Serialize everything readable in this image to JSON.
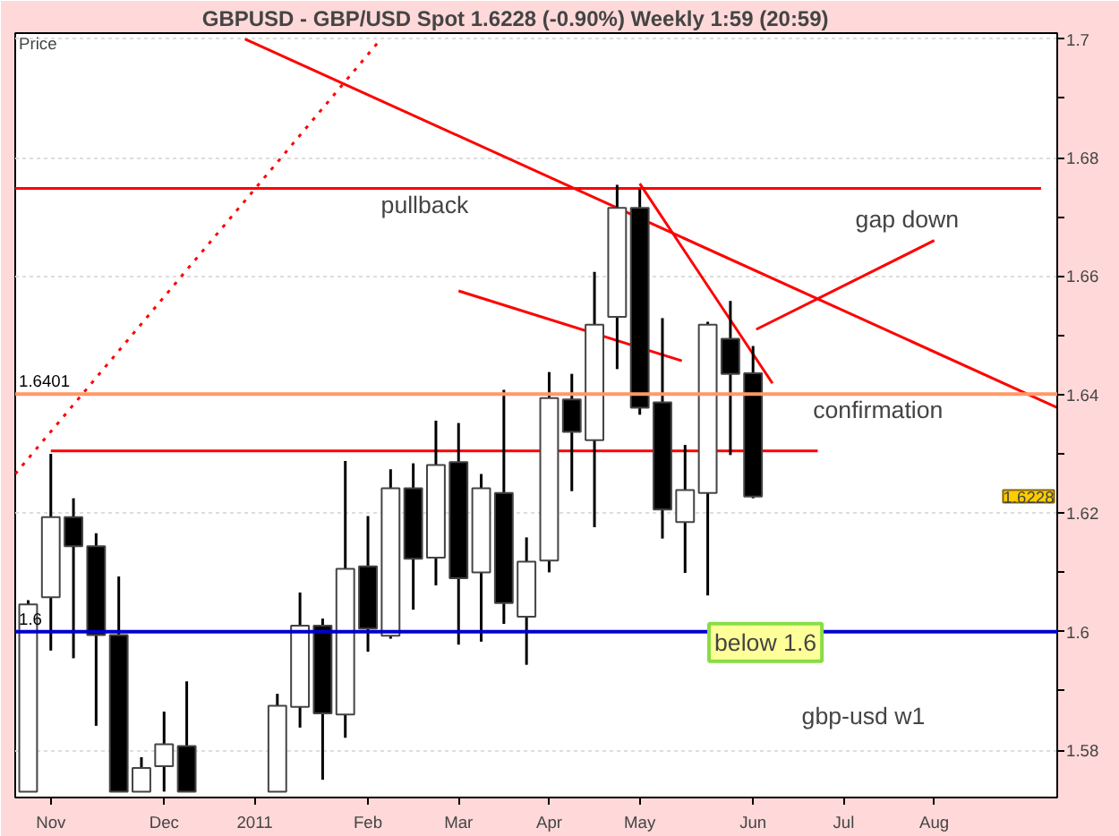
{
  "chart_data": {
    "type": "candlestick",
    "title": "GBPUSD - GBP/USD Spot    1.6228 (-0.90%)    Weekly  1:59 (20:59)",
    "ylabel": "Price",
    "x": [
      "2010-10-25",
      "2010-11-01",
      "2010-11-08",
      "2010-11-15",
      "2010-11-22",
      "2010-11-29",
      "2010-12-06",
      "2010-12-13",
      "2011-01-10",
      "2011-01-17",
      "2011-01-24",
      "2011-01-31",
      "2011-02-07",
      "2011-02-14",
      "2011-02-21",
      "2011-02-28",
      "2011-03-07",
      "2011-03-14",
      "2011-03-21",
      "2011-03-28",
      "2011-04-04",
      "2011-04-11",
      "2011-04-18",
      "2011-04-25",
      "2011-05-02",
      "2011-05-09",
      "2011-05-16",
      "2011-05-23",
      "2011-05-30",
      "2011-06-06"
    ],
    "ohlc": [
      [
        1.573,
        1.6053,
        1.573,
        1.6046
      ],
      [
        1.6058,
        1.63,
        1.5968,
        1.6193
      ],
      [
        1.6193,
        1.6225,
        1.5955,
        1.6144
      ],
      [
        1.6144,
        1.6166,
        1.5841,
        1.5994
      ],
      [
        1.5994,
        1.6093,
        1.573,
        1.573
      ],
      [
        1.573,
        1.5788,
        1.573,
        1.577
      ],
      [
        1.5773,
        1.5865,
        1.573,
        1.581
      ],
      [
        1.5807,
        1.5916,
        1.573,
        1.573
      ],
      [
        1.573,
        1.5895,
        1.573,
        1.5875
      ],
      [
        1.5873,
        1.6066,
        1.5838,
        1.601
      ],
      [
        1.601,
        1.6022,
        1.575,
        1.5862
      ],
      [
        1.586,
        1.6288,
        1.5821,
        1.6106
      ],
      [
        1.611,
        1.6195,
        1.5966,
        1.6005
      ],
      [
        1.5993,
        1.6274,
        1.5988,
        1.6242
      ],
      [
        1.6242,
        1.6284,
        1.6037,
        1.6123
      ],
      [
        1.6125,
        1.6356,
        1.6078,
        1.6281
      ],
      [
        1.6286,
        1.6352,
        1.5978,
        1.609
      ],
      [
        1.61,
        1.6266,
        1.5983,
        1.6242
      ],
      [
        1.6234,
        1.6408,
        1.6013,
        1.6048
      ],
      [
        1.6025,
        1.6159,
        1.5944,
        1.6118
      ],
      [
        1.612,
        1.6438,
        1.61,
        1.6394
      ],
      [
        1.6392,
        1.6435,
        1.6237,
        1.6337
      ],
      [
        1.6323,
        1.6607,
        1.6176,
        1.6518
      ],
      [
        1.6531,
        1.6754,
        1.6443,
        1.6715
      ],
      [
        1.6715,
        1.6746,
        1.6366,
        1.6378
      ],
      [
        1.6387,
        1.6529,
        1.6157,
        1.6206
      ],
      [
        1.6185,
        1.6315,
        1.6099,
        1.6239
      ],
      [
        1.6234,
        1.6523,
        1.6061,
        1.6518
      ],
      [
        1.6494,
        1.6558,
        1.6298,
        1.6435
      ],
      [
        1.6436,
        1.6482,
        1.6225,
        1.6228
      ]
    ],
    "series": [
      {
        "type": "line",
        "color": "#ff0000",
        "x": [
          "2010-10-21",
          "2011-09-03"
        ],
        "values": [
          1.6748,
          1.6748
        ]
      },
      {
        "type": "line",
        "color": "#ff0000",
        "x": [
          "2010-11-01",
          "2011-06-26"
        ],
        "values": [
          1.6305,
          1.6305
        ]
      },
      {
        "type": "line",
        "color": "#ff0000",
        "x": [
          "2010-12-31",
          "2011-09-08"
        ],
        "values": [
          1.7,
          1.6378
        ]
      },
      {
        "type": "line",
        "color": "#ff0000",
        "line_style": "dotted",
        "x": [
          "2010-10-21",
          "2011-02-11"
        ],
        "values": [
          1.6266,
          1.7
        ]
      },
      {
        "type": "line",
        "color": "#ff0000",
        "x": [
          "2011-05-02",
          "2011-06-12"
        ],
        "values": [
          1.6756,
          1.6419
        ]
      },
      {
        "type": "line",
        "color": "#ff0000",
        "x": [
          "2011-03-07",
          "2011-05-15"
        ],
        "values": [
          1.6575,
          1.6457
        ]
      },
      {
        "type": "line",
        "color": "#ff0000",
        "x": [
          "2011-08-01",
          "2011-06-07"
        ],
        "values": [
          1.666,
          1.651
        ]
      }
    ],
    "ref_lines": [
      {
        "axis": "y",
        "value": 1.6401,
        "label": "1.6401",
        "color": "#ff9966"
      },
      {
        "axis": "y",
        "value": 1.6,
        "label": "1.6",
        "color": "#0000cc"
      }
    ],
    "annotations": [
      "pullback",
      "gap down",
      "confirmation",
      "below 1.6",
      "gbp-usd w1",
      "1.6228"
    ],
    "xlim": [
      "2010-10-21",
      "2011-09-08"
    ],
    "xticks": [
      {
        "value": "2010-11-01",
        "label": "Nov"
      },
      {
        "value": "2010-12-06",
        "label": "Dec"
      },
      {
        "value": "2011-01-03",
        "label": "2011"
      },
      {
        "value": "2011-02-07",
        "label": "Feb"
      },
      {
        "value": "2011-03-07",
        "label": "Mar"
      },
      {
        "value": "2011-04-04",
        "label": "Apr"
      },
      {
        "value": "2011-05-02",
        "label": "May"
      },
      {
        "value": "2011-06-06",
        "label": "Jun"
      },
      {
        "value": "2011-07-04",
        "label": "Jul"
      },
      {
        "value": "2011-08-01",
        "label": "Aug"
      }
    ],
    "ylim": [
      1.572,
      1.701
    ],
    "yticks": [
      1.58,
      {
        "value": 1.59,
        "label": null
      },
      1.6,
      {
        "value": 1.61,
        "label": null
      },
      1.62,
      {
        "value": 1.63,
        "label": null
      },
      1.64,
      {
        "value": 1.65,
        "label": null
      },
      1.66,
      {
        "value": 1.67,
        "label": null
      },
      1.68,
      {
        "value": 1.69,
        "label": null
      },
      1.7
    ],
    "grid": "y"
  }
}
